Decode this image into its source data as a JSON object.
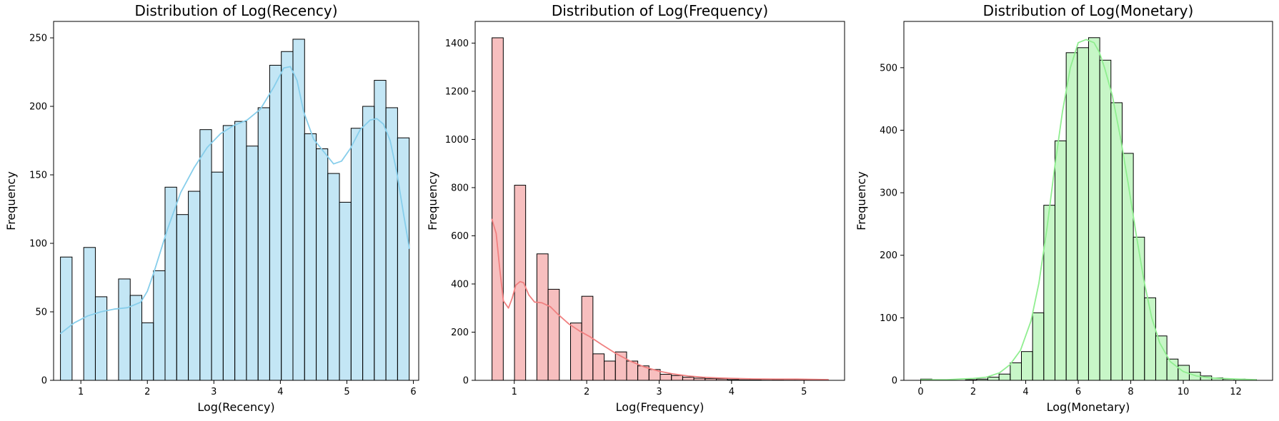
{
  "chart_data": [
    {
      "type": "bar",
      "title": "Distribution of Log(Recency)",
      "xlabel": "Log(Recency)",
      "ylabel": "Frequency",
      "xlim": [
        0.59,
        6.08
      ],
      "ylim": [
        0,
        262
      ],
      "xticks": [
        1,
        2,
        3,
        4,
        5,
        6
      ],
      "yticks": [
        0,
        50,
        100,
        150,
        200,
        250
      ],
      "bar_color": "#87CEEB",
      "kde_color": "#87CEEB",
      "bins": [
        {
          "x0": 0.693,
          "x1": 0.868,
          "count": 90
        },
        {
          "x0": 0.868,
          "x1": 1.043,
          "count": 0
        },
        {
          "x0": 1.043,
          "x1": 1.218,
          "count": 97
        },
        {
          "x0": 1.218,
          "x1": 1.392,
          "count": 61
        },
        {
          "x0": 1.392,
          "x1": 1.567,
          "count": 0
        },
        {
          "x0": 1.567,
          "x1": 1.742,
          "count": 74
        },
        {
          "x0": 1.742,
          "x1": 1.917,
          "count": 62
        },
        {
          "x0": 1.917,
          "x1": 2.092,
          "count": 42
        },
        {
          "x0": 2.092,
          "x1": 2.266,
          "count": 80
        },
        {
          "x0": 2.266,
          "x1": 2.441,
          "count": 141
        },
        {
          "x0": 2.441,
          "x1": 2.616,
          "count": 121
        },
        {
          "x0": 2.616,
          "x1": 2.791,
          "count": 138
        },
        {
          "x0": 2.791,
          "x1": 2.965,
          "count": 183
        },
        {
          "x0": 2.965,
          "x1": 3.14,
          "count": 152
        },
        {
          "x0": 3.14,
          "x1": 3.315,
          "count": 186
        },
        {
          "x0": 3.315,
          "x1": 3.49,
          "count": 189
        },
        {
          "x0": 3.49,
          "x1": 3.665,
          "count": 171
        },
        {
          "x0": 3.665,
          "x1": 3.839,
          "count": 199
        },
        {
          "x0": 3.839,
          "x1": 4.014,
          "count": 230
        },
        {
          "x0": 4.014,
          "x1": 4.189,
          "count": 240
        },
        {
          "x0": 4.189,
          "x1": 4.364,
          "count": 249
        },
        {
          "x0": 4.364,
          "x1": 4.539,
          "count": 180
        },
        {
          "x0": 4.539,
          "x1": 4.713,
          "count": 169
        },
        {
          "x0": 4.713,
          "x1": 4.888,
          "count": 151
        },
        {
          "x0": 4.888,
          "x1": 5.063,
          "count": 130
        },
        {
          "x0": 5.063,
          "x1": 5.238,
          "count": 184
        },
        {
          "x0": 5.238,
          "x1": 5.412,
          "count": 200
        },
        {
          "x0": 5.412,
          "x1": 5.587,
          "count": 219
        },
        {
          "x0": 5.587,
          "x1": 5.762,
          "count": 199
        },
        {
          "x0": 5.762,
          "x1": 5.937,
          "count": 177
        }
      ],
      "kde": {
        "x": [
          0.69,
          0.9,
          1.1,
          1.3,
          1.5,
          1.7,
          1.9,
          2.0,
          2.1,
          2.3,
          2.5,
          2.7,
          2.9,
          3.1,
          3.3,
          3.5,
          3.7,
          3.9,
          4.05,
          4.15,
          4.25,
          4.35,
          4.5,
          4.65,
          4.8,
          4.92,
          5.05,
          5.2,
          5.35,
          5.45,
          5.55,
          5.65,
          5.75,
          5.85,
          5.94
        ],
        "y": [
          34,
          42,
          47,
          50,
          52,
          53,
          57,
          65,
          79,
          110,
          137,
          155,
          170,
          180,
          186,
          190,
          198,
          214,
          228,
          229,
          219,
          196,
          176,
          167,
          158,
          160,
          169,
          183,
          190,
          191,
          187,
          175,
          152,
          122,
          96
        ]
      }
    },
    {
      "type": "bar",
      "title": "Distribution of Log(Frequency)",
      "xlabel": "Log(Frequency)",
      "ylabel": "Frequency",
      "xlim": [
        0.46,
        5.56
      ],
      "ylim": [
        0,
        1490
      ],
      "xticks": [
        1,
        2,
        3,
        4,
        5
      ],
      "yticks": [
        0,
        200,
        400,
        600,
        800,
        1000,
        1200,
        1400
      ],
      "bar_color": "#F08080",
      "kde_color": "#F08080",
      "bins": [
        {
          "x0": 0.693,
          "x1": 0.848,
          "count": 1422
        },
        {
          "x0": 0.848,
          "x1": 1.003,
          "count": 0
        },
        {
          "x0": 1.003,
          "x1": 1.157,
          "count": 810
        },
        {
          "x0": 1.157,
          "x1": 1.312,
          "count": 0
        },
        {
          "x0": 1.312,
          "x1": 1.467,
          "count": 525
        },
        {
          "x0": 1.467,
          "x1": 1.622,
          "count": 378
        },
        {
          "x0": 1.622,
          "x1": 1.777,
          "count": 0
        },
        {
          "x0": 1.777,
          "x1": 1.931,
          "count": 238
        },
        {
          "x0": 1.931,
          "x1": 2.086,
          "count": 349
        },
        {
          "x0": 2.086,
          "x1": 2.241,
          "count": 110
        },
        {
          "x0": 2.241,
          "x1": 2.396,
          "count": 80
        },
        {
          "x0": 2.396,
          "x1": 2.551,
          "count": 118
        },
        {
          "x0": 2.551,
          "x1": 2.705,
          "count": 80
        },
        {
          "x0": 2.705,
          "x1": 2.86,
          "count": 60
        },
        {
          "x0": 2.86,
          "x1": 3.015,
          "count": 45
        },
        {
          "x0": 3.015,
          "x1": 3.17,
          "count": 25
        },
        {
          "x0": 3.17,
          "x1": 3.325,
          "count": 20
        },
        {
          "x0": 3.325,
          "x1": 3.479,
          "count": 13
        },
        {
          "x0": 3.479,
          "x1": 3.634,
          "count": 9
        },
        {
          "x0": 3.634,
          "x1": 3.789,
          "count": 7
        },
        {
          "x0": 3.789,
          "x1": 3.944,
          "count": 6
        },
        {
          "x0": 3.944,
          "x1": 4.099,
          "count": 3
        },
        {
          "x0": 4.099,
          "x1": 4.253,
          "count": 2
        },
        {
          "x0": 4.253,
          "x1": 4.408,
          "count": 2
        },
        {
          "x0": 4.408,
          "x1": 4.563,
          "count": 1
        },
        {
          "x0": 4.563,
          "x1": 4.718,
          "count": 2
        },
        {
          "x0": 4.718,
          "x1": 4.873,
          "count": 1
        },
        {
          "x0": 4.873,
          "x1": 5.027,
          "count": 1
        },
        {
          "x0": 5.027,
          "x1": 5.182,
          "count": 1
        },
        {
          "x0": 5.182,
          "x1": 5.337,
          "count": 1
        }
      ],
      "kde": {
        "x": [
          0.69,
          0.75,
          0.8,
          0.85,
          0.92,
          0.97,
          1.02,
          1.08,
          1.13,
          1.2,
          1.28,
          1.38,
          1.5,
          1.6,
          1.75,
          1.9,
          2.05,
          2.2,
          2.4,
          2.6,
          2.8,
          3.0,
          3.2,
          3.4,
          3.6,
          3.8,
          4.0,
          4.3,
          4.6,
          4.9,
          5.1,
          5.34
        ],
        "y": [
          670,
          610,
          460,
          330,
          300,
          340,
          395,
          410,
          405,
          355,
          325,
          322,
          305,
          275,
          235,
          205,
          180,
          150,
          112,
          80,
          55,
          38,
          26,
          18,
          13,
          10,
          8,
          6,
          5,
          5,
          4,
          3
        ]
      }
    },
    {
      "type": "bar",
      "title": "Distribution of Log(Monetary)",
      "xlabel": "Log(Monetary)",
      "ylabel": "Frequency",
      "xlim": [
        -0.64,
        13.4
      ],
      "ylim": [
        0,
        574
      ],
      "xticks": [
        0,
        2,
        4,
        6,
        8,
        10,
        12
      ],
      "yticks": [
        0,
        100,
        200,
        300,
        400,
        500
      ],
      "bar_color": "#90EE90",
      "kde_color": "#90EE90",
      "bins": [
        {
          "x0": 0.0,
          "x1": 0.426,
          "count": 2
        },
        {
          "x0": 0.426,
          "x1": 0.852,
          "count": 0
        },
        {
          "x0": 0.852,
          "x1": 1.279,
          "count": 0
        },
        {
          "x0": 1.279,
          "x1": 1.705,
          "count": 0
        },
        {
          "x0": 1.705,
          "x1": 2.131,
          "count": 1
        },
        {
          "x0": 2.131,
          "x1": 2.557,
          "count": 2
        },
        {
          "x0": 2.557,
          "x1": 2.983,
          "count": 5
        },
        {
          "x0": 2.983,
          "x1": 3.41,
          "count": 10
        },
        {
          "x0": 3.41,
          "x1": 3.836,
          "count": 28
        },
        {
          "x0": 3.836,
          "x1": 4.262,
          "count": 46
        },
        {
          "x0": 4.262,
          "x1": 4.688,
          "count": 108
        },
        {
          "x0": 4.688,
          "x1": 5.114,
          "count": 280
        },
        {
          "x0": 5.114,
          "x1": 5.541,
          "count": 383
        },
        {
          "x0": 5.541,
          "x1": 5.967,
          "count": 524
        },
        {
          "x0": 5.967,
          "x1": 6.393,
          "count": 532
        },
        {
          "x0": 6.393,
          "x1": 6.819,
          "count": 548
        },
        {
          "x0": 6.819,
          "x1": 7.245,
          "count": 512
        },
        {
          "x0": 7.245,
          "x1": 7.672,
          "count": 444
        },
        {
          "x0": 7.672,
          "x1": 8.098,
          "count": 363
        },
        {
          "x0": 8.098,
          "x1": 8.524,
          "count": 229
        },
        {
          "x0": 8.524,
          "x1": 8.95,
          "count": 132
        },
        {
          "x0": 8.95,
          "x1": 9.376,
          "count": 71
        },
        {
          "x0": 9.376,
          "x1": 9.803,
          "count": 34
        },
        {
          "x0": 9.803,
          "x1": 10.229,
          "count": 24
        },
        {
          "x0": 10.229,
          "x1": 10.655,
          "count": 13
        },
        {
          "x0": 10.655,
          "x1": 11.081,
          "count": 7
        },
        {
          "x0": 11.081,
          "x1": 11.507,
          "count": 4
        },
        {
          "x0": 11.507,
          "x1": 11.934,
          "count": 2
        },
        {
          "x0": 11.934,
          "x1": 12.36,
          "count": 2
        },
        {
          "x0": 12.36,
          "x1": 12.786,
          "count": 1
        }
      ],
      "kde": {
        "x": [
          0.0,
          0.5,
          1.0,
          1.5,
          2.0,
          2.5,
          3.0,
          3.4,
          3.8,
          4.2,
          4.5,
          4.8,
          5.1,
          5.4,
          5.7,
          6.0,
          6.3,
          6.6,
          6.8,
          7.0,
          7.3,
          7.6,
          7.9,
          8.2,
          8.5,
          8.8,
          9.1,
          9.5,
          10.0,
          10.5,
          11.0,
          11.5,
          12.0,
          12.79
        ],
        "y": [
          1,
          1,
          1,
          2,
          3,
          5,
          12,
          25,
          48,
          95,
          155,
          240,
          340,
          430,
          500,
          540,
          545,
          540,
          525,
          500,
          455,
          390,
          315,
          235,
          160,
          100,
          60,
          30,
          14,
          7,
          4,
          3,
          2,
          1
        ]
      }
    }
  ]
}
